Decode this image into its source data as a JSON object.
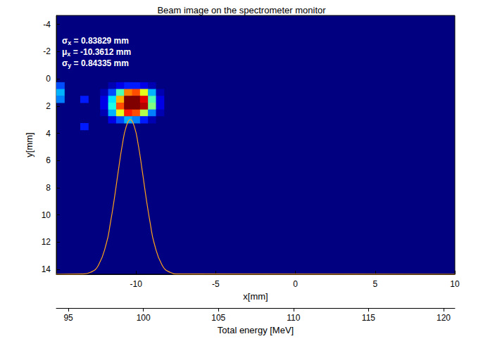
{
  "chart_data": {
    "type": "heatmap",
    "title": "Beam image on the spectrometer monitor",
    "x_label": "x[mm]",
    "y_label": "y[mm]",
    "x2_label": "Total energy [MeV]",
    "xlim": [
      -15,
      10
    ],
    "xticks": [
      -10,
      -5,
      0,
      5,
      10
    ],
    "ylim": [
      -4.65,
      14.35
    ],
    "yticks": [
      -4,
      -2,
      0,
      2,
      4,
      6,
      8,
      10,
      12,
      14
    ],
    "x2lim": [
      94.2,
      120.75
    ],
    "x2ticks": [
      95,
      100,
      105,
      110,
      115,
      120
    ],
    "grid": false,
    "zlim": [
      0,
      1
    ],
    "cells": [
      [
        -12,
        0.5,
        0
      ],
      [
        -11.5,
        0.5,
        0.05
      ],
      [
        -11,
        0.5,
        0.1
      ],
      [
        -10.5,
        0.5,
        0.15
      ],
      [
        -10,
        0.5,
        0.15
      ],
      [
        -9.5,
        0.5,
        0.1
      ],
      [
        -9,
        0.5,
        0.05
      ],
      [
        -8.5,
        0.5,
        0
      ],
      [
        -12,
        1,
        0.05
      ],
      [
        -11.5,
        1,
        0.2
      ],
      [
        -11,
        1,
        0.45
      ],
      [
        -10.5,
        1,
        0.75
      ],
      [
        -10,
        1,
        0.8
      ],
      [
        -9.5,
        1,
        0.6
      ],
      [
        -9,
        1,
        0.3
      ],
      [
        -8.5,
        1,
        0.05
      ],
      [
        -12,
        1.5,
        0.1
      ],
      [
        -11.5,
        1.5,
        0.35
      ],
      [
        -11,
        1.5,
        0.7
      ],
      [
        -10.5,
        1.5,
        1
      ],
      [
        -10,
        1.5,
        1
      ],
      [
        -9.5,
        1.5,
        0.9
      ],
      [
        -9,
        1.5,
        0.45
      ],
      [
        -8.5,
        1.5,
        0.1
      ],
      [
        -12,
        2,
        0.1
      ],
      [
        -11.5,
        2,
        0.4
      ],
      [
        -11,
        2,
        0.8
      ],
      [
        -10.5,
        2,
        1
      ],
      [
        -10,
        2,
        1
      ],
      [
        -9.5,
        2,
        0.95
      ],
      [
        -9,
        2,
        0.5
      ],
      [
        -8.5,
        2,
        0.1
      ],
      [
        -12,
        2.5,
        0.05
      ],
      [
        -11.5,
        2.5,
        0.3
      ],
      [
        -11,
        2.5,
        0.6
      ],
      [
        -10.5,
        2.5,
        0.85
      ],
      [
        -10,
        2.5,
        0.8
      ],
      [
        -9.5,
        2.5,
        0.55
      ],
      [
        -9,
        2.5,
        0.25
      ],
      [
        -8.5,
        2.5,
        0.05
      ],
      [
        -12,
        3,
        0
      ],
      [
        -11.5,
        3,
        0.1
      ],
      [
        -11,
        3,
        0.2
      ],
      [
        -10.5,
        3,
        0.3
      ],
      [
        -10,
        3,
        0.25
      ],
      [
        -9.5,
        3,
        0.15
      ],
      [
        -9,
        3,
        0.05
      ],
      [
        -8.5,
        3,
        0
      ],
      [
        -14.75,
        0.5,
        0.2
      ],
      [
        -14.75,
        1,
        0.3
      ],
      [
        -14.75,
        1.5,
        0.25
      ],
      [
        -13.25,
        1.5,
        0.15
      ],
      [
        -13.25,
        3.5,
        0.15
      ]
    ],
    "curve": {
      "type": "line",
      "color": "#ffa31a",
      "x": [
        -15,
        -13.36,
        -12.86,
        -12.36,
        -11.86,
        -11.61,
        -11.36,
        -11.11,
        -10.86,
        -10.61,
        -10.36,
        -10.11,
        -9.86,
        -9.61,
        -9.36,
        -9.11,
        -8.86,
        -8.36,
        -7.86,
        -7.36,
        10
      ],
      "values": [
        14.35,
        14.33,
        14.21,
        13.69,
        12.08,
        10.6,
        8.79,
        6.75,
        4.85,
        3.49,
        3.0,
        3.49,
        4.85,
        6.75,
        8.79,
        10.6,
        12.08,
        13.69,
        14.21,
        14.33,
        14.35
      ]
    },
    "annotations": [
      "σx = 0.83829 mm",
      "μx = -10.3612 mm",
      "σy = 0.84335 mm"
    ]
  }
}
